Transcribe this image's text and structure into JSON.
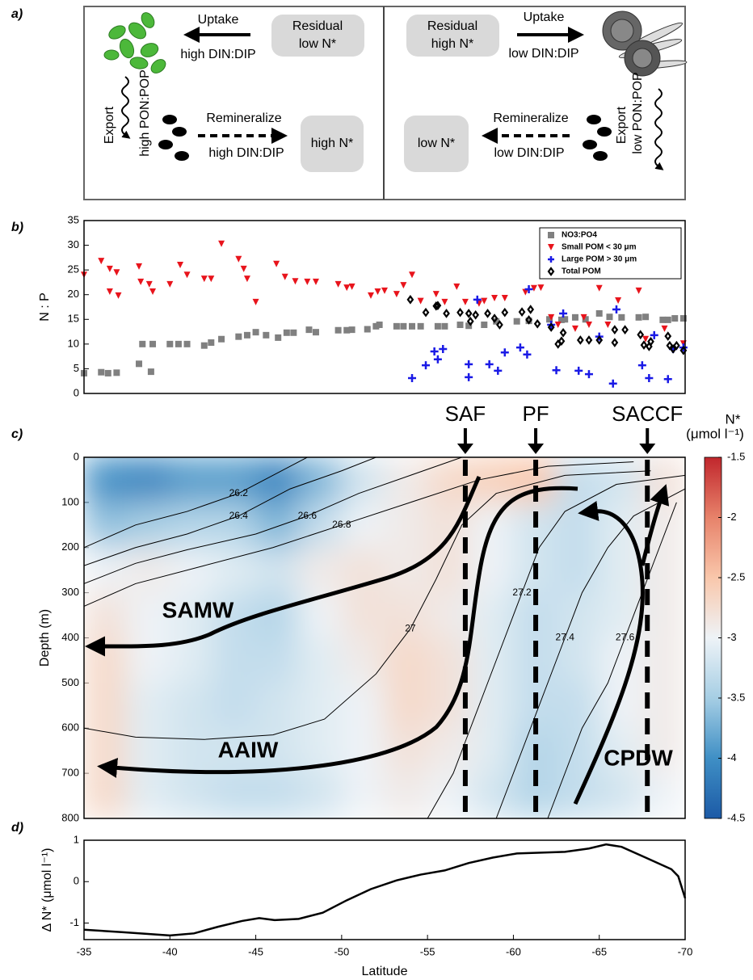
{
  "panel_labels": [
    "a)",
    "b)",
    "c)",
    "d)"
  ],
  "diagram": {
    "left": {
      "residual": [
        "Residual",
        "low N*"
      ],
      "uptake": "Uptake",
      "uptake_ratio": "high DIN:DIP",
      "export": "Export",
      "export_ratio": "high PON:POP",
      "remineralize": "Remineralize",
      "remin_ratio": "high DIN:DIP",
      "pool": "high N*"
    },
    "right": {
      "residual": [
        "Residual",
        "high N*"
      ],
      "uptake": "Uptake",
      "uptake_ratio": "low DIN:DIP",
      "export": "Export",
      "export_ratio": "low PON:POP",
      "remineralize": "Remineralize",
      "remin_ratio": "low DIN:DIP",
      "pool": "low N*"
    }
  },
  "chart_data": [
    {
      "type": "scatter",
      "ylabel": "N : P",
      "xlim": [
        -35,
        -70
      ],
      "ylim": [
        0,
        35
      ],
      "yticks": [
        0,
        5,
        10,
        15,
        20,
        25,
        30,
        35
      ],
      "legend": "upper right",
      "series": [
        {
          "name": "NO3:PO4",
          "color": "#808080",
          "marker": "square",
          "x": [
            -35,
            -36,
            -36.4,
            -36.9,
            -38.2,
            -38.4,
            -39,
            -38.9,
            -40,
            -40.5,
            -41,
            -42,
            -42.4,
            -43,
            -44,
            -44.5,
            -45,
            -45.6,
            -46.3,
            -46.8,
            -47.2,
            -48.1,
            -48.5,
            -49.8,
            -50.3,
            -50.6,
            -51.5,
            -52,
            -52.2,
            -53.2,
            -53.6,
            -54.1,
            -54.6,
            -55.6,
            -56,
            -56.9,
            -57.4,
            -58.3,
            -59,
            -60.2,
            -60.9,
            -62.1,
            -62.8,
            -63,
            -63.6,
            -64.2,
            -65,
            -65.6,
            -66.3,
            -67.3,
            -67.7,
            -68.7,
            -69,
            -69.4,
            -69.9
          ],
          "values": [
            4.1,
            4.3,
            4.1,
            4.2,
            6,
            10,
            10,
            4.4,
            10,
            10,
            10,
            9.7,
            10.3,
            11,
            11.5,
            11.8,
            12.4,
            11.8,
            11.3,
            12.3,
            12.3,
            12.9,
            12.4,
            12.8,
            12.8,
            12.9,
            13,
            13.6,
            13.9,
            13.6,
            13.6,
            13.6,
            13.6,
            13.6,
            13.6,
            13.9,
            13.7,
            13.9,
            14.6,
            14.6,
            14.7,
            15,
            14.9,
            15,
            15.4,
            15,
            16.2,
            15.5,
            15.4,
            15.4,
            15.5,
            14.9,
            14.9,
            15.2,
            15.2
          ]
        },
        {
          "name": "Small POM < 30 μm",
          "color": "#e8141c",
          "marker": "triangle-down",
          "x": [
            -35,
            -36,
            -36.5,
            -36.9,
            -37,
            -36.5,
            -38.2,
            -38.3,
            -38.8,
            -39,
            -40,
            -40.6,
            -41,
            -42,
            -42.4,
            -43,
            -44,
            -44.3,
            -44.5,
            -45,
            -46.2,
            -46.7,
            -47.3,
            -48,
            -48.5,
            -49.8,
            -50.3,
            -50.6,
            -51.7,
            -52.1,
            -52.5,
            -53.2,
            -53.6,
            -54.1,
            -54.6,
            -55.5,
            -56,
            -56.7,
            -57.2,
            -58,
            -58.3,
            -58.9,
            -59.5,
            -60.7,
            -61.2,
            -61.6,
            -62.2,
            -62.6,
            -63.6,
            -64.1,
            -64.4,
            -65,
            -65.5,
            -66.1,
            -67.3,
            -67.7,
            -68.8,
            -69.9
          ],
          "values": [
            24,
            26.8,
            25.2,
            24.5,
            19.8,
            20.6,
            25.7,
            22.6,
            22.1,
            20.6,
            22.1,
            26,
            24,
            23.2,
            23.2,
            30.3,
            27.2,
            25.2,
            23.2,
            18.5,
            26.2,
            23.6,
            22.7,
            22.6,
            22.6,
            22.1,
            21.4,
            21.6,
            19.8,
            20.6,
            20.8,
            20.1,
            21.9,
            24,
            18.7,
            20.1,
            18.5,
            21.6,
            18.5,
            18.2,
            18.7,
            19.3,
            19.3,
            20.5,
            21.3,
            21.4,
            15.4,
            13.9,
            13.1,
            15.4,
            13.9,
            21.3,
            13.9,
            18.8,
            20.8,
            11,
            13.1,
            10.1
          ]
        },
        {
          "name": "Large POM > 30 μm",
          "color": "#1a1ae6",
          "marker": "plus",
          "x": [
            -54.1,
            -55.4,
            -55.6,
            -55.9,
            -54.9,
            -57.4,
            -57.4,
            -57.9,
            -58.6,
            -59.1,
            -59.5,
            -60.4,
            -60.8,
            -60.9,
            -62.2,
            -62.5,
            -62.9,
            -63.8,
            -64.4,
            -65,
            -65.8,
            -66,
            -67.5,
            -67.9,
            -68.2,
            -69,
            -69.3,
            -69.9
          ],
          "values": [
            3.1,
            8.5,
            6.9,
            9,
            5.7,
            3.3,
            5.9,
            19,
            5.9,
            4.6,
            8.3,
            9.3,
            7.9,
            21.1,
            13.9,
            4.7,
            16.2,
            4.6,
            3.9,
            11.5,
            2,
            17,
            5.7,
            3.1,
            11.8,
            2.9,
            9,
            9.3
          ]
        },
        {
          "name": "Total POM",
          "color": "#000000",
          "marker": "diamond",
          "x": [
            -54,
            -54.9,
            -55.5,
            -55.6,
            -56.1,
            -56.9,
            -57.4,
            -57.5,
            -57.8,
            -58.5,
            -58.9,
            -59.2,
            -59.5,
            -60.5,
            -60.9,
            -61,
            -61.4,
            -62.2,
            -62.6,
            -62.8,
            -62.9,
            -63.9,
            -64.4,
            -65,
            -65.9,
            -65.9,
            -66.5,
            -67.4,
            -67.6,
            -67.9,
            -68,
            -69,
            -69.1,
            -69.3,
            -69.5,
            -69.9
          ],
          "values": [
            19,
            16.4,
            17.7,
            17.8,
            16.2,
            16.4,
            16.2,
            14.6,
            15.9,
            16.2,
            15.2,
            13.9,
            16.4,
            16.5,
            14.9,
            17,
            14.1,
            13.4,
            10,
            10.6,
            12.3,
            10.8,
            10.8,
            10.8,
            12.9,
            10.3,
            12.9,
            11.9,
            9.8,
            9.5,
            10.5,
            11.6,
            9.7,
            9,
            9.7,
            8.7
          ]
        }
      ]
    },
    {
      "type": "heatmap",
      "ylabel": "Depth (m)",
      "xlim": [
        -35,
        -70
      ],
      "ylim": [
        800,
        0
      ],
      "yticks": [
        0,
        100,
        200,
        300,
        400,
        500,
        600,
        700,
        800
      ],
      "x": [
        -36.25,
        -38.75,
        -41.25,
        -43.75,
        -46.25,
        -48.75,
        -51.25,
        -53.75,
        -56.25,
        -58.75,
        -61.25,
        -63.75,
        -66.25,
        -68.75
      ],
      "y": [
        50,
        150,
        250,
        350,
        450,
        550,
        650,
        750
      ],
      "z": [
        [
          -4.0,
          -4.1,
          -3.9,
          -3.9,
          -4.1,
          -3.7,
          -3.2,
          -2.9,
          -2.7,
          -2.6,
          -2.5,
          -3.3,
          -3.2,
          -2.8
        ],
        [
          -3.6,
          -3.5,
          -3.4,
          -3.4,
          -3.7,
          -3.3,
          -3.0,
          -2.9,
          -2.8,
          -3.0,
          -3.2,
          -3.3,
          -3.1,
          -2.9
        ],
        [
          -3.0,
          -2.9,
          -3.0,
          -3.1,
          -3.2,
          -2.9,
          -2.8,
          -2.9,
          -2.8,
          -3.0,
          -3.2,
          -3.3,
          -3.1,
          -2.9
        ],
        [
          -2.8,
          -3.0,
          -3.1,
          -3.3,
          -3.4,
          -3.0,
          -2.8,
          -2.8,
          -2.9,
          -3.1,
          -3.3,
          -3.2,
          -3.1,
          -2.9
        ],
        [
          -2.7,
          -3.0,
          -3.1,
          -3.3,
          -3.3,
          -3.1,
          -2.9,
          -2.7,
          -2.8,
          -3.1,
          -3.3,
          -3.2,
          -3.0,
          -2.9
        ],
        [
          -2.7,
          -3.1,
          -3.2,
          -3.3,
          -3.2,
          -3.1,
          -3.0,
          -2.7,
          -2.8,
          -3.1,
          -3.3,
          -3.3,
          -3.0,
          -2.9
        ],
        [
          -2.7,
          -3.1,
          -3.2,
          -3.2,
          -3.2,
          -3.1,
          -3.0,
          -2.8,
          -2.9,
          -3.1,
          -3.4,
          -3.3,
          -3.1,
          -2.9
        ],
        [
          -2.7,
          -3.1,
          -3.2,
          -3.3,
          -3.3,
          -3.2,
          -3.0,
          -2.9,
          -3.0,
          -3.2,
          -3.4,
          -3.3,
          -3.2,
          -3.0
        ]
      ],
      "clim": [
        -4.5,
        -1.5
      ],
      "cticks": [
        -1.5,
        -2,
        -2.5,
        -3,
        -3.5,
        -4,
        -4.5
      ],
      "colors": [
        "#1c5aa6",
        "#3f8fc5",
        "#a6cee4",
        "#eef3f7",
        "#f9c7ab",
        "#e7826a",
        "#c1272d"
      ],
      "colorbar_label": [
        "N*",
        "(μmol l⁻¹)"
      ],
      "contours": [
        {
          "level": "26.2",
          "x": [
            -35,
            -38,
            -41,
            -44,
            -47,
            -48
          ],
          "y": [
            200,
            150,
            120,
            80,
            20,
            0
          ]
        },
        {
          "level": "26.4",
          "x": [
            -35,
            -38,
            -41,
            -44,
            -47,
            -50,
            -52
          ],
          "y": [
            240,
            200,
            170,
            130,
            70,
            30,
            0
          ]
        },
        {
          "level": "26.6",
          "x": [
            -35,
            -38,
            -41,
            -45,
            -48,
            -51,
            -54,
            -57
          ],
          "y": [
            280,
            235,
            205,
            170,
            130,
            80,
            40,
            0
          ]
        },
        {
          "level": "26.8",
          "x": [
            -35,
            -38,
            -42,
            -46,
            -50,
            -54,
            -58,
            -62,
            -67
          ],
          "y": [
            330,
            280,
            240,
            200,
            150,
            100,
            50,
            20,
            10
          ]
        },
        {
          "level": "27",
          "x": [
            -35,
            -38,
            -42,
            -46,
            -49,
            -52,
            -54,
            -55.5,
            -57,
            -59,
            -63,
            -68
          ],
          "y": [
            600,
            620,
            625,
            615,
            580,
            480,
            380,
            270,
            150,
            80,
            40,
            30
          ]
        },
        {
          "level": "27.2",
          "x": [
            -55,
            -56.5,
            -57.5,
            -58.5,
            -59.5,
            -60.5,
            -61.5,
            -63,
            -66,
            -70
          ],
          "y": [
            800,
            700,
            600,
            500,
            400,
            300,
            200,
            120,
            60,
            40
          ]
        },
        {
          "level": "27.4",
          "x": [
            -59,
            -60,
            -61,
            -62,
            -63,
            -64,
            -65.5,
            -67,
            -70
          ],
          "y": [
            800,
            700,
            600,
            500,
            400,
            300,
            200,
            130,
            70
          ]
        },
        {
          "level": "27.6",
          "x": [
            -62,
            -63,
            -64,
            -65.5,
            -66.5,
            -67.5,
            -68.5,
            -69.5
          ],
          "y": [
            800,
            700,
            600,
            500,
            400,
            300,
            200,
            100
          ]
        }
      ],
      "fronts": [
        {
          "name": "SAF",
          "lat": -57.2
        },
        {
          "name": "PF",
          "lat": -61.3
        },
        {
          "name": "SACCF",
          "lat": -67.8
        }
      ],
      "water_masses": [
        "SAMW",
        "AAIW",
        "CPDW"
      ]
    },
    {
      "type": "line",
      "ylabel": "Δ N* (μmol l⁻¹)",
      "xlabel": "Latitude",
      "xlim": [
        -35,
        -70
      ],
      "ylim": [
        -1.4,
        1
      ],
      "xticks": [
        -35,
        -40,
        -45,
        -50,
        -55,
        -60,
        -65,
        -70
      ],
      "yticks": [
        -1,
        0,
        1
      ],
      "color": "#000000",
      "x": [
        -35,
        -37.2,
        -40,
        -41.4,
        -42.8,
        -44.2,
        -45.2,
        -46.1,
        -47.5,
        -48.9,
        -50.3,
        -51.7,
        -53.2,
        -54.6,
        -56,
        -57.4,
        -58.8,
        -60.2,
        -61.6,
        -63,
        -64.4,
        -65.4,
        -66.3,
        -67.7,
        -69.2,
        -69.6,
        -70
      ],
      "values": [
        -1.16,
        -1.22,
        -1.3,
        -1.25,
        -1.09,
        -0.95,
        -0.88,
        -0.93,
        -0.9,
        -0.75,
        -0.45,
        -0.18,
        0.03,
        0.17,
        0.27,
        0.45,
        0.58,
        0.68,
        0.7,
        0.72,
        0.8,
        0.9,
        0.84,
        0.58,
        0.3,
        0.13,
        -0.4
      ]
    }
  ]
}
